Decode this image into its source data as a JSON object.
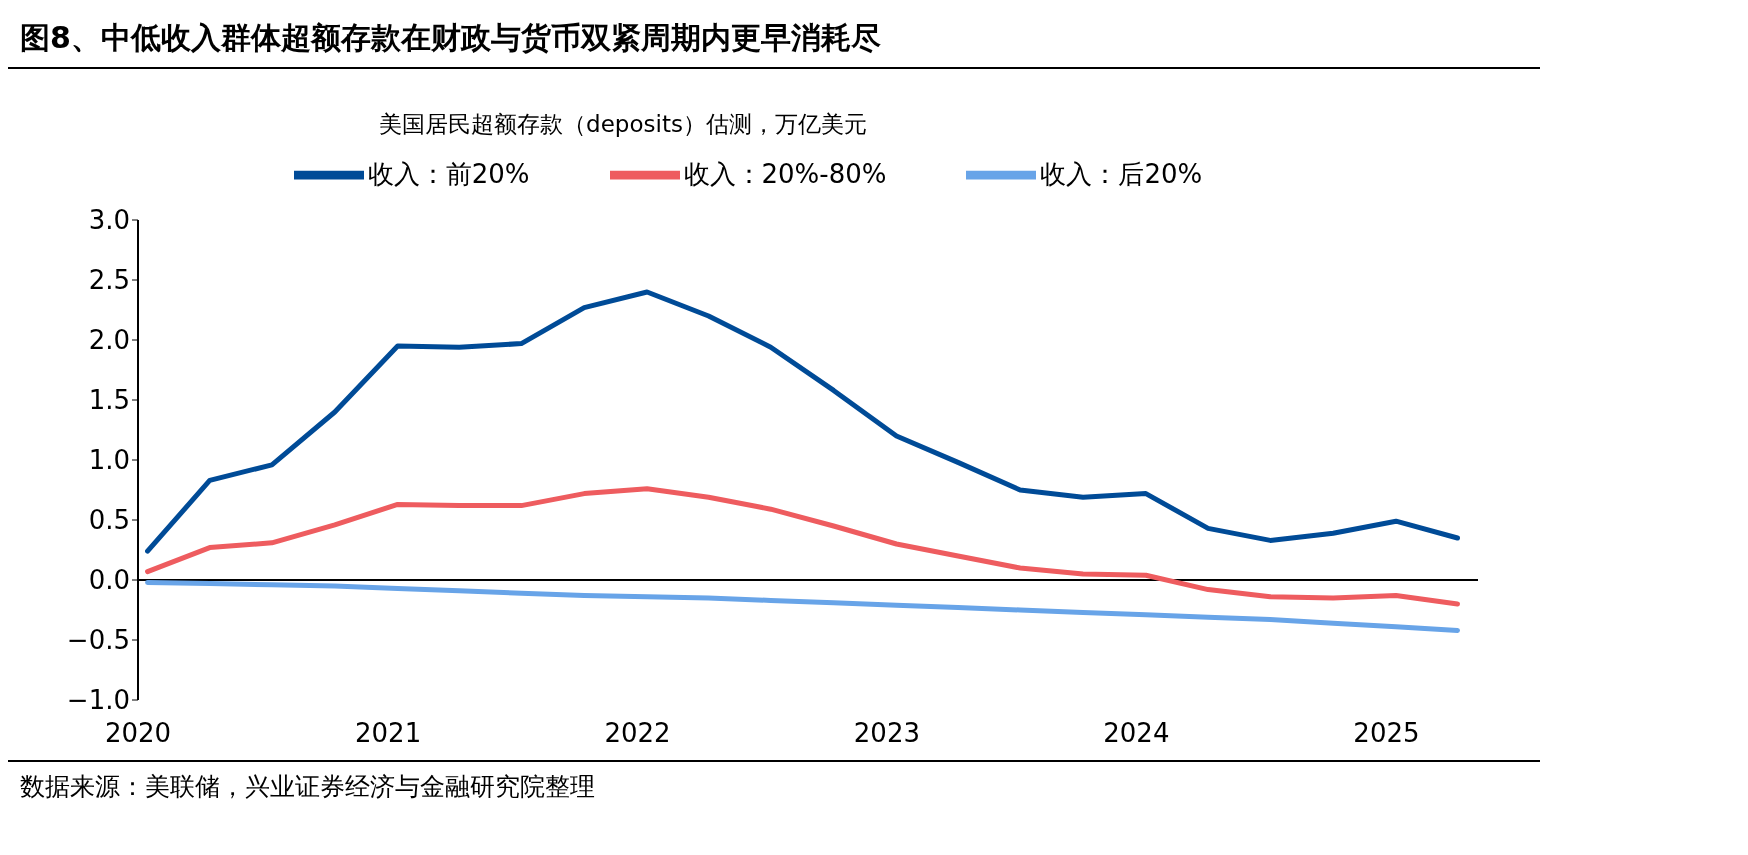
{
  "chart_data": {
    "type": "line",
    "title": "图8、中低收入群体超额存款在财政与货币双紧周期内更早消耗尽",
    "subtitle": "美国居民超额存款（deposits）估测，万亿美元",
    "annotations": [
      "数据来源：美联储，兴业证券经济与金融研究院整理"
    ],
    "x": [
      "2020-01-15",
      "2020-04-15",
      "2020-07-15",
      "2020-10-15",
      "2021-01-15",
      "2021-04-15",
      "2021-07-15",
      "2021-10-15",
      "2022-01-15",
      "2022-04-15",
      "2022-07-15",
      "2022-10-15",
      "2023-01-15",
      "2023-04-15",
      "2023-07-15",
      "2023-10-15",
      "2024-01-15",
      "2024-04-15",
      "2024-07-15",
      "2024-10-15",
      "2025-01-15",
      "2025-04-15"
    ],
    "series": [
      {
        "name": "收入：前20%",
        "color": "#004b97",
        "values": [
          0.24,
          0.83,
          0.96,
          1.4,
          1.95,
          1.94,
          1.97,
          2.27,
          2.4,
          2.2,
          1.94,
          1.58,
          1.2,
          0.98,
          0.75,
          0.69,
          0.72,
          0.43,
          0.33,
          0.39,
          0.49,
          0.35
        ]
      },
      {
        "name": "收入：20%-80%",
        "color": "#ee5c5f",
        "values": [
          0.07,
          0.27,
          0.31,
          0.46,
          0.63,
          0.62,
          0.62,
          0.72,
          0.76,
          0.69,
          0.59,
          0.45,
          0.3,
          0.2,
          0.1,
          0.05,
          0.04,
          -0.08,
          -0.14,
          -0.15,
          -0.13,
          -0.2
        ]
      },
      {
        "name": "收入：后20%",
        "color": "#68a4e8",
        "values": [
          -0.02,
          -0.03,
          -0.04,
          -0.05,
          -0.07,
          -0.09,
          -0.11,
          -0.13,
          -0.14,
          -0.15,
          -0.17,
          -0.19,
          -0.21,
          -0.23,
          -0.25,
          -0.27,
          -0.29,
          -0.31,
          -0.33,
          -0.36,
          -0.39,
          -0.42
        ]
      }
    ],
    "xlim": [
      "2020-01-01",
      "2025-05-15"
    ],
    "xticks": [
      {
        "value": "2020-01-01",
        "label": "2020"
      },
      {
        "value": "2021-01-01",
        "label": "2021"
      },
      {
        "value": "2022-01-01",
        "label": "2022"
      },
      {
        "value": "2023-01-01",
        "label": "2023"
      },
      {
        "value": "2024-01-01",
        "label": "2024"
      },
      {
        "value": "2025-01-01",
        "label": "2025"
      }
    ],
    "ylim": [
      -1.0,
      3.0
    ],
    "yticks": [
      {
        "value": -1,
        "label": "−1.0"
      },
      {
        "value": -0.5,
        "label": "−0.5"
      },
      {
        "value": 0,
        "label": "0.0"
      },
      {
        "value": 0.5,
        "label": "0.5"
      },
      {
        "value": 1,
        "label": "1.0"
      },
      {
        "value": 1.5,
        "label": "1.5"
      },
      {
        "value": 2,
        "label": "2.0"
      },
      {
        "value": 2.5,
        "label": "2.5"
      },
      {
        "value": 3,
        "label": "3.0"
      }
    ],
    "ref_lines": [
      {
        "axis": "y",
        "value": 0,
        "color": "#000000"
      }
    ],
    "legend": "top",
    "marker": "none",
    "line_style": "solid"
  }
}
